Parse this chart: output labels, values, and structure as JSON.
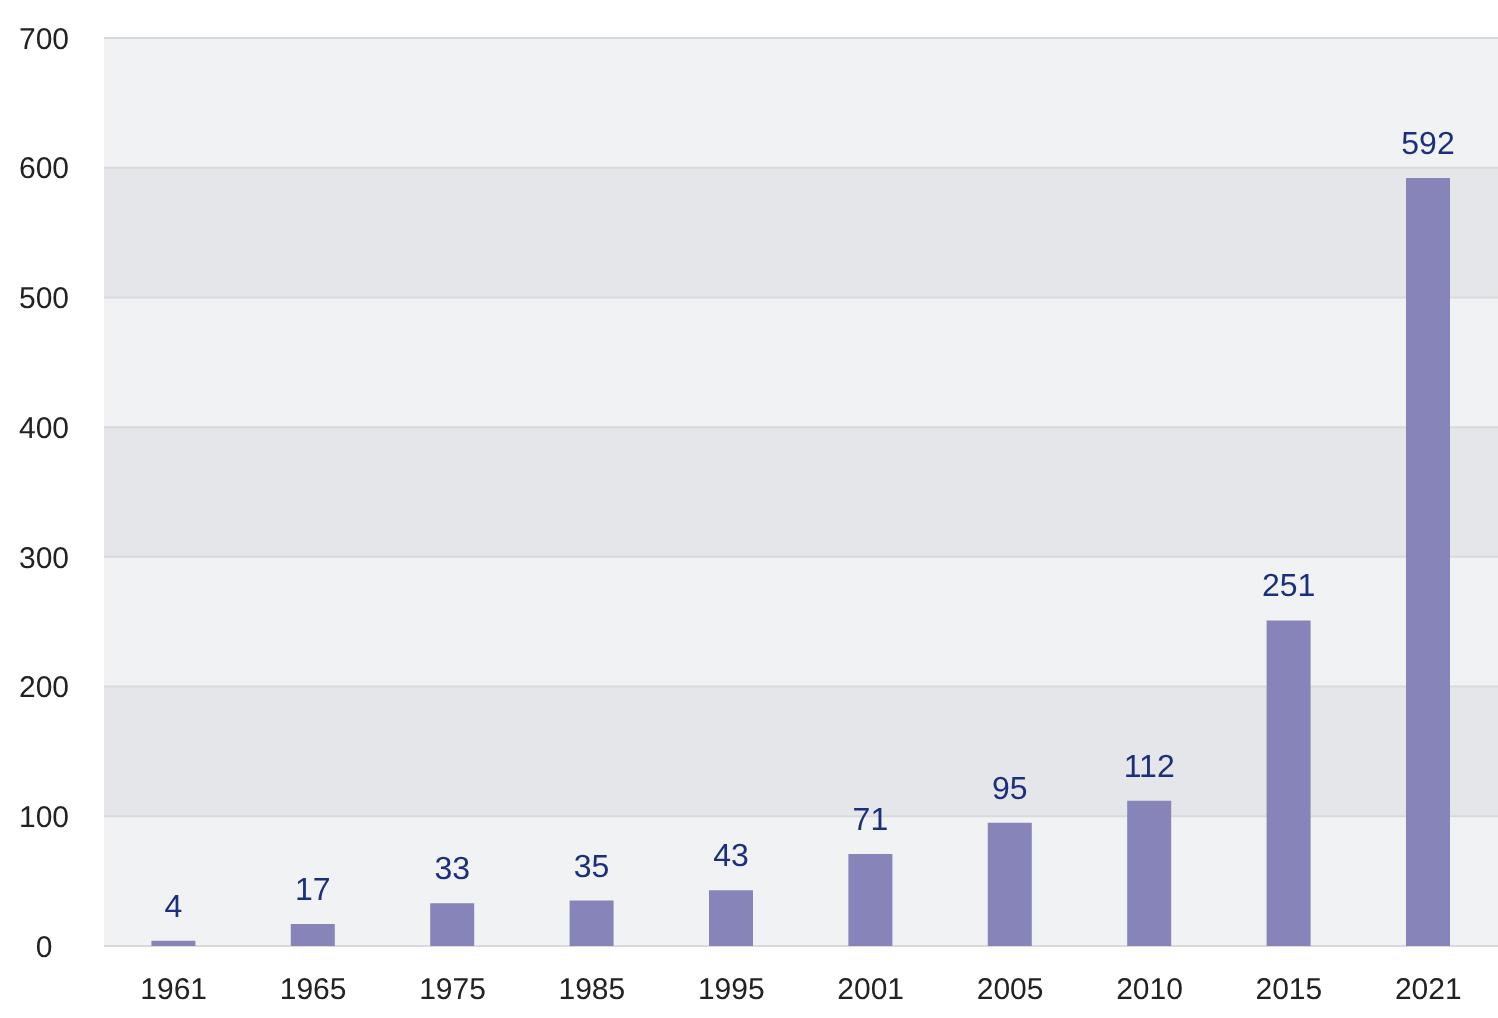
{
  "chart_data": {
    "type": "bar",
    "categories": [
      "1961",
      "1965",
      "1975",
      "1985",
      "1995",
      "2001",
      "2005",
      "2010",
      "2015",
      "2021"
    ],
    "values": [
      4,
      17,
      33,
      35,
      43,
      71,
      95,
      112,
      251,
      592
    ],
    "color": "#8684b8",
    "ylim": [
      0,
      700
    ],
    "yticks": [
      0,
      100,
      200,
      300,
      400,
      500,
      600,
      700
    ],
    "grid": "y",
    "data_labels": true
  }
}
